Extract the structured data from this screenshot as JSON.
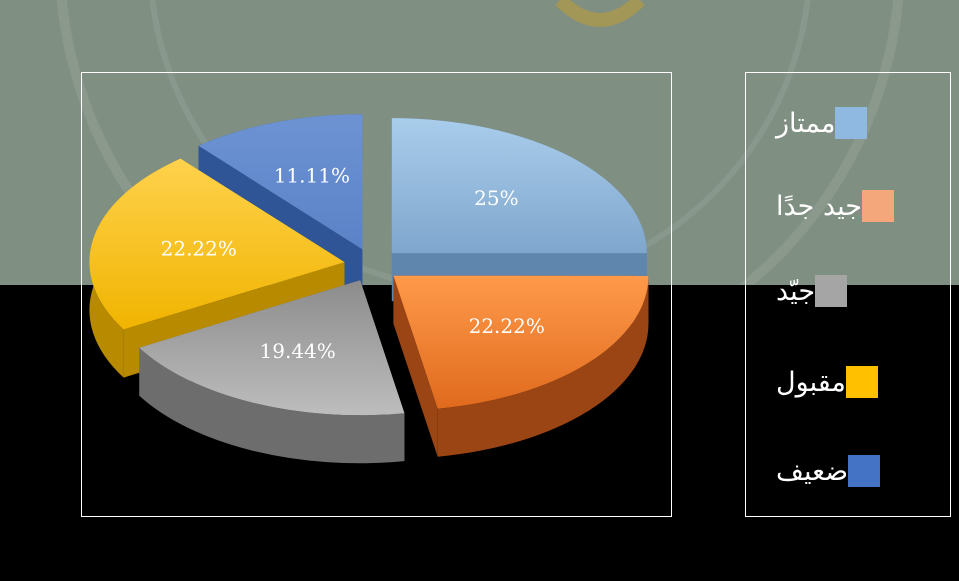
{
  "chart_data": {
    "type": "pie",
    "style": "3d-exploded",
    "labels": [
      "ممتاز",
      "جيد جدًا",
      "جيّد",
      "مقبول",
      "ضعيف"
    ],
    "values": [
      25,
      22.22,
      19.44,
      22.22,
      11.11
    ],
    "data_labels": [
      "25%",
      "22.22%",
      "19.44%",
      "22.22%",
      "11.11%"
    ],
    "colors": [
      "#8fb9e0",
      "#ed7d31",
      "#a5a5a5",
      "#ffc000",
      "#4472c4"
    ],
    "legend_position": "right"
  },
  "legend": {
    "items": [
      {
        "label": "ممتاز",
        "color": "#8fb9e0"
      },
      {
        "label": "جيد جدًا",
        "color": "#f4a77a"
      },
      {
        "label": "جيّد",
        "color": "#a5a5a5"
      },
      {
        "label": "مقبول",
        "color": "#ffc000"
      },
      {
        "label": "ضعيف",
        "color": "#4472c4"
      }
    ]
  }
}
